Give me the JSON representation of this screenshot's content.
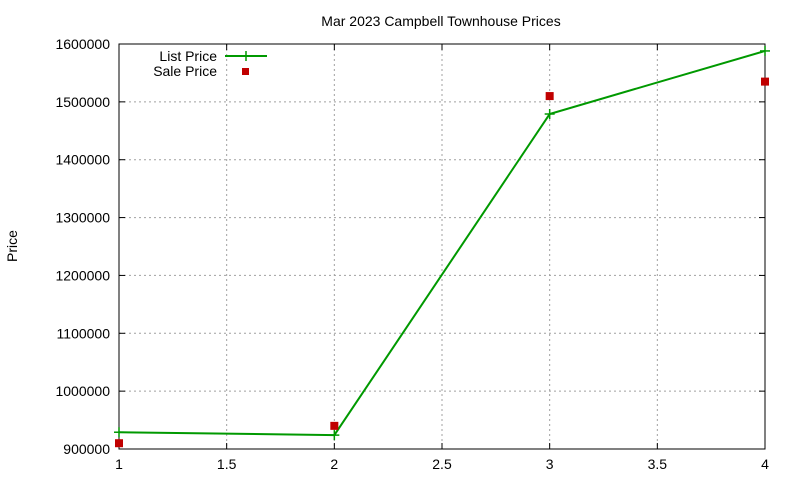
{
  "chart_data": {
    "type": "line",
    "title": "Mar 2023 Campbell Townhouse Prices",
    "xlabel": "",
    "ylabel": "Price",
    "xlim": [
      1,
      4
    ],
    "ylim": [
      900000,
      1600000
    ],
    "x_ticks": [
      "1",
      "1.5",
      "2",
      "2.5",
      "3",
      "3.5",
      "4"
    ],
    "x_tick_values": [
      1,
      1.5,
      2,
      2.5,
      3,
      3.5,
      4
    ],
    "y_ticks": [
      "900000",
      "1000000",
      "1100000",
      "1200000",
      "1300000",
      "1400000",
      "1500000",
      "1600000"
    ],
    "y_tick_values": [
      900000,
      1000000,
      1100000,
      1200000,
      1300000,
      1400000,
      1500000,
      1600000
    ],
    "grid": true,
    "legend_position": "top-left",
    "series": [
      {
        "name": "List Price",
        "style": "line-with-plus-markers",
        "color": "#009900",
        "x": [
          1,
          2,
          3,
          4
        ],
        "values": [
          929000,
          924000,
          1479000,
          1588000
        ]
      },
      {
        "name": "Sale Price",
        "style": "square-markers",
        "color": "#c00000",
        "x": [
          1,
          2,
          3,
          4
        ],
        "values": [
          910000,
          940000,
          1510000,
          1535000
        ]
      }
    ]
  }
}
